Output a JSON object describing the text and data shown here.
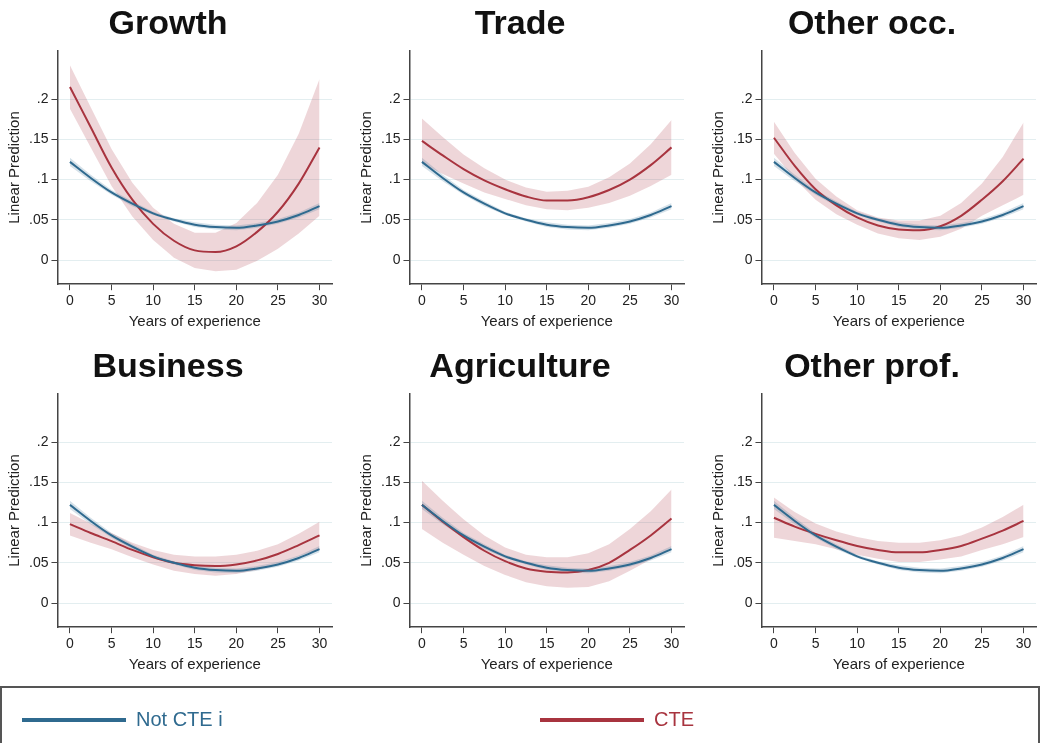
{
  "chart_data": [
    {
      "type": "line",
      "title": "Growth",
      "xlabel": "Years of experience",
      "ylabel": "Linear Prediction",
      "xlim": [
        -1.5,
        31.5
      ],
      "ylim": [
        -0.03,
        0.26
      ],
      "xticks": [
        0,
        5,
        10,
        15,
        20,
        25,
        30
      ],
      "yticks": [
        {
          "value": 0,
          "label": "0"
        },
        {
          "value": 0.05,
          "label": ".05"
        },
        {
          "value": 0.1,
          "label": ".1"
        },
        {
          "value": 0.15,
          "label": ".15"
        },
        {
          "value": 0.2,
          "label": ".2"
        }
      ],
      "grid": "y",
      "legend": "bottom",
      "marker": "none",
      "line_style": "solid",
      "x": [
        0,
        2.5,
        5,
        7.5,
        10,
        12.5,
        15,
        17.5,
        20,
        22.5,
        25,
        27.5,
        30
      ],
      "series": [
        {
          "name": "Not CTE i",
          "color": "#2f6a8f",
          "values": [
            0.122,
            0.102,
            0.084,
            0.07,
            0.058,
            0.05,
            0.044,
            0.041,
            0.04,
            0.043,
            0.048,
            0.056,
            0.067
          ],
          "lower": [
            0.117,
            0.098,
            0.081,
            0.067,
            0.056,
            0.048,
            0.041,
            0.038,
            0.037,
            0.04,
            0.045,
            0.053,
            0.063
          ],
          "upper": [
            0.127,
            0.106,
            0.087,
            0.073,
            0.06,
            0.052,
            0.047,
            0.044,
            0.043,
            0.046,
            0.051,
            0.059,
            0.071
          ]
        },
        {
          "name": "CTE",
          "color": "#a8343f",
          "values": [
            0.215,
            0.165,
            0.115,
            0.075,
            0.045,
            0.024,
            0.012,
            0.01,
            0.017,
            0.035,
            0.06,
            0.095,
            0.14
          ],
          "lower": [
            0.188,
            0.14,
            0.092,
            0.054,
            0.025,
            0.003,
            -0.01,
            -0.014,
            -0.012,
            -0.001,
            0.014,
            0.033,
            0.055
          ],
          "upper": [
            0.242,
            0.19,
            0.138,
            0.096,
            0.065,
            0.045,
            0.034,
            0.034,
            0.046,
            0.071,
            0.106,
            0.157,
            0.225
          ]
        }
      ]
    },
    {
      "type": "line",
      "title": "Trade",
      "xlabel": "Years of experience",
      "ylabel": "Linear Prediction",
      "xlim": [
        -1.5,
        31.5
      ],
      "ylim": [
        -0.03,
        0.26
      ],
      "xticks": [
        0,
        5,
        10,
        15,
        20,
        25,
        30
      ],
      "yticks": [
        {
          "value": 0,
          "label": "0"
        },
        {
          "value": 0.05,
          "label": ".05"
        },
        {
          "value": 0.1,
          "label": ".1"
        },
        {
          "value": 0.15,
          "label": ".15"
        },
        {
          "value": 0.2,
          "label": ".2"
        }
      ],
      "grid": "y",
      "marker": "none",
      "line_style": "solid",
      "x": [
        0,
        2.5,
        5,
        7.5,
        10,
        12.5,
        15,
        17.5,
        20,
        22.5,
        25,
        27.5,
        30
      ],
      "series": [
        {
          "color": "#2f6a8f",
          "values": [
            0.122,
            0.102,
            0.084,
            0.07,
            0.058,
            0.05,
            0.044,
            0.041,
            0.04,
            0.043,
            0.048,
            0.056,
            0.067
          ],
          "lower": [
            0.117,
            0.098,
            0.081,
            0.067,
            0.056,
            0.048,
            0.041,
            0.038,
            0.037,
            0.04,
            0.045,
            0.053,
            0.063
          ],
          "upper": [
            0.127,
            0.106,
            0.087,
            0.073,
            0.06,
            0.052,
            0.047,
            0.044,
            0.043,
            0.046,
            0.051,
            0.059,
            0.071
          ]
        },
        {
          "color": "#a8343f",
          "values": [
            0.148,
            0.13,
            0.113,
            0.099,
            0.088,
            0.079,
            0.074,
            0.074,
            0.078,
            0.087,
            0.1,
            0.118,
            0.14
          ],
          "lower": [
            0.12,
            0.107,
            0.095,
            0.084,
            0.076,
            0.068,
            0.063,
            0.062,
            0.065,
            0.071,
            0.08,
            0.092,
            0.106
          ],
          "upper": [
            0.176,
            0.153,
            0.131,
            0.114,
            0.1,
            0.09,
            0.085,
            0.086,
            0.091,
            0.103,
            0.12,
            0.144,
            0.174
          ]
        }
      ]
    },
    {
      "type": "line",
      "title": "Other occ.",
      "xlabel": "Years of experience",
      "ylabel": "Linear Prediction",
      "xlim": [
        -1.5,
        31.5
      ],
      "ylim": [
        -0.03,
        0.26
      ],
      "xticks": [
        0,
        5,
        10,
        15,
        20,
        25,
        30
      ],
      "yticks": [
        {
          "value": 0,
          "label": "0"
        },
        {
          "value": 0.05,
          "label": ".05"
        },
        {
          "value": 0.1,
          "label": ".1"
        },
        {
          "value": 0.15,
          "label": ".15"
        },
        {
          "value": 0.2,
          "label": ".2"
        }
      ],
      "grid": "y",
      "marker": "none",
      "line_style": "solid",
      "x": [
        0,
        2.5,
        5,
        7.5,
        10,
        12.5,
        15,
        17.5,
        20,
        22.5,
        25,
        27.5,
        30
      ],
      "series": [
        {
          "color": "#2f6a8f",
          "values": [
            0.122,
            0.102,
            0.084,
            0.07,
            0.058,
            0.05,
            0.044,
            0.041,
            0.04,
            0.043,
            0.048,
            0.056,
            0.067
          ],
          "lower": [
            0.117,
            0.098,
            0.081,
            0.067,
            0.056,
            0.048,
            0.041,
            0.038,
            0.037,
            0.04,
            0.045,
            0.053,
            0.063
          ],
          "upper": [
            0.127,
            0.106,
            0.087,
            0.073,
            0.06,
            0.052,
            0.047,
            0.044,
            0.043,
            0.046,
            0.051,
            0.059,
            0.071
          ]
        },
        {
          "color": "#a8343f",
          "values": [
            0.152,
            0.117,
            0.088,
            0.068,
            0.053,
            0.043,
            0.038,
            0.037,
            0.042,
            0.055,
            0.075,
            0.098,
            0.126
          ],
          "lower": [
            0.132,
            0.101,
            0.075,
            0.057,
            0.044,
            0.033,
            0.027,
            0.025,
            0.029,
            0.039,
            0.055,
            0.068,
            0.081
          ],
          "upper": [
            0.172,
            0.133,
            0.101,
            0.079,
            0.062,
            0.053,
            0.049,
            0.049,
            0.055,
            0.071,
            0.095,
            0.128,
            0.171
          ]
        }
      ]
    },
    {
      "type": "line",
      "title": "Business",
      "xlabel": "Years of experience",
      "ylabel": "Linear Prediction",
      "xlim": [
        -1.5,
        31.5
      ],
      "ylim": [
        -0.03,
        0.26
      ],
      "xticks": [
        0,
        5,
        10,
        15,
        20,
        25,
        30
      ],
      "yticks": [
        {
          "value": 0,
          "label": "0"
        },
        {
          "value": 0.05,
          "label": ".05"
        },
        {
          "value": 0.1,
          "label": ".1"
        },
        {
          "value": 0.15,
          "label": ".15"
        },
        {
          "value": 0.2,
          "label": ".2"
        }
      ],
      "grid": "y",
      "marker": "none",
      "line_style": "solid",
      "x": [
        0,
        2.5,
        5,
        7.5,
        10,
        12.5,
        15,
        17.5,
        20,
        22.5,
        25,
        27.5,
        30
      ],
      "series": [
        {
          "color": "#2f6a8f",
          "values": [
            0.122,
            0.102,
            0.084,
            0.07,
            0.058,
            0.05,
            0.044,
            0.041,
            0.04,
            0.043,
            0.048,
            0.056,
            0.067
          ],
          "lower": [
            0.117,
            0.098,
            0.081,
            0.067,
            0.056,
            0.048,
            0.041,
            0.038,
            0.037,
            0.04,
            0.045,
            0.053,
            0.063
          ],
          "upper": [
            0.127,
            0.106,
            0.087,
            0.073,
            0.06,
            0.052,
            0.047,
            0.044,
            0.043,
            0.046,
            0.051,
            0.059,
            0.071
          ]
        },
        {
          "color": "#a8343f",
          "values": [
            0.098,
            0.087,
            0.077,
            0.066,
            0.057,
            0.05,
            0.047,
            0.046,
            0.048,
            0.053,
            0.061,
            0.072,
            0.084
          ],
          "lower": [
            0.084,
            0.075,
            0.067,
            0.057,
            0.048,
            0.04,
            0.036,
            0.034,
            0.036,
            0.041,
            0.049,
            0.058,
            0.067
          ],
          "upper": [
            0.112,
            0.099,
            0.087,
            0.075,
            0.066,
            0.06,
            0.058,
            0.058,
            0.06,
            0.065,
            0.073,
            0.086,
            0.101
          ]
        }
      ]
    },
    {
      "type": "line",
      "title": "Agriculture",
      "xlabel": "Years of experience",
      "ylabel": "Linear Prediction",
      "xlim": [
        -1.5,
        31.5
      ],
      "ylim": [
        -0.03,
        0.26
      ],
      "xticks": [
        0,
        5,
        10,
        15,
        20,
        25,
        30
      ],
      "yticks": [
        {
          "value": 0,
          "label": "0"
        },
        {
          "value": 0.05,
          "label": ".05"
        },
        {
          "value": 0.1,
          "label": ".1"
        },
        {
          "value": 0.15,
          "label": ".15"
        },
        {
          "value": 0.2,
          "label": ".2"
        }
      ],
      "grid": "y",
      "marker": "none",
      "line_style": "solid",
      "x": [
        0,
        2.5,
        5,
        7.5,
        10,
        12.5,
        15,
        17.5,
        20,
        22.5,
        25,
        27.5,
        30
      ],
      "series": [
        {
          "color": "#2f6a8f",
          "values": [
            0.122,
            0.102,
            0.084,
            0.07,
            0.058,
            0.05,
            0.044,
            0.041,
            0.04,
            0.043,
            0.048,
            0.056,
            0.067
          ],
          "lower": [
            0.117,
            0.098,
            0.081,
            0.067,
            0.056,
            0.048,
            0.041,
            0.038,
            0.037,
            0.04,
            0.045,
            0.053,
            0.063
          ],
          "upper": [
            0.127,
            0.106,
            0.087,
            0.073,
            0.06,
            0.052,
            0.047,
            0.044,
            0.043,
            0.046,
            0.051,
            0.059,
            0.071
          ]
        },
        {
          "color": "#a8343f",
          "values": [
            0.122,
            0.101,
            0.082,
            0.065,
            0.052,
            0.043,
            0.039,
            0.038,
            0.041,
            0.05,
            0.066,
            0.084,
            0.105
          ],
          "lower": [
            0.092,
            0.075,
            0.06,
            0.046,
            0.035,
            0.026,
            0.021,
            0.019,
            0.02,
            0.027,
            0.04,
            0.054,
            0.069
          ],
          "upper": [
            0.152,
            0.127,
            0.104,
            0.084,
            0.069,
            0.06,
            0.057,
            0.057,
            0.062,
            0.073,
            0.092,
            0.114,
            0.141
          ]
        }
      ]
    },
    {
      "type": "line",
      "title": "Other prof.",
      "xlabel": "Years of experience",
      "ylabel": "Linear Prediction",
      "xlim": [
        -1.5,
        31.5
      ],
      "ylim": [
        -0.03,
        0.26
      ],
      "xticks": [
        0,
        5,
        10,
        15,
        20,
        25,
        30
      ],
      "yticks": [
        {
          "value": 0,
          "label": "0"
        },
        {
          "value": 0.05,
          "label": ".05"
        },
        {
          "value": 0.1,
          "label": ".1"
        },
        {
          "value": 0.15,
          "label": ".15"
        },
        {
          "value": 0.2,
          "label": ".2"
        }
      ],
      "grid": "y",
      "marker": "none",
      "line_style": "solid",
      "x": [
        0,
        2.5,
        5,
        7.5,
        10,
        12.5,
        15,
        17.5,
        20,
        22.5,
        25,
        27.5,
        30
      ],
      "series": [
        {
          "color": "#2f6a8f",
          "values": [
            0.122,
            0.102,
            0.084,
            0.07,
            0.058,
            0.05,
            0.044,
            0.041,
            0.04,
            0.043,
            0.048,
            0.056,
            0.067
          ],
          "lower": [
            0.117,
            0.098,
            0.081,
            0.067,
            0.056,
            0.048,
            0.041,
            0.038,
            0.037,
            0.04,
            0.045,
            0.053,
            0.063
          ],
          "upper": [
            0.127,
            0.106,
            0.087,
            0.073,
            0.06,
            0.052,
            0.047,
            0.044,
            0.043,
            0.046,
            0.051,
            0.059,
            0.071
          ]
        },
        {
          "color": "#a8343f",
          "values": [
            0.106,
            0.095,
            0.086,
            0.078,
            0.071,
            0.066,
            0.063,
            0.063,
            0.066,
            0.071,
            0.08,
            0.09,
            0.102
          ],
          "lower": [
            0.081,
            0.077,
            0.073,
            0.067,
            0.06,
            0.055,
            0.051,
            0.051,
            0.054,
            0.058,
            0.066,
            0.073,
            0.082
          ],
          "upper": [
            0.131,
            0.113,
            0.099,
            0.089,
            0.082,
            0.077,
            0.075,
            0.075,
            0.078,
            0.084,
            0.094,
            0.107,
            0.122
          ]
        }
      ]
    }
  ]
}
